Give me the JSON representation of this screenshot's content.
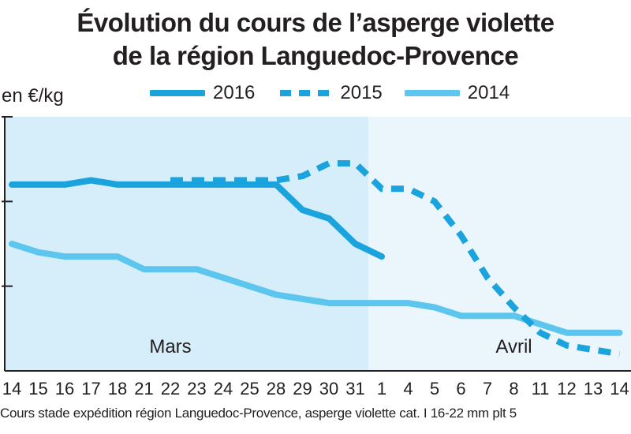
{
  "title_line1": "Évolution du cours de l’asperge violette",
  "title_line2": "de la région Languedoc-Provence",
  "unit": "en €/kg",
  "footnote": "Cours stade expédition région Languedoc-Provence, asperge violette cat. I 16-22 mm plt 5",
  "months": {
    "march": "Mars",
    "april": "Avril"
  },
  "colors": {
    "s2016": "#1ba3dd",
    "s2015": "#1ba3dd",
    "s2014": "#5cc6ee",
    "shade_march": "#d6eef9",
    "shade_april": "#eaf6fc",
    "axis": "#231f20"
  },
  "chart_data": {
    "type": "line",
    "title": "Évolution du cours de l’asperge violette de la région Languedoc-Provence",
    "ylabel": "en €/kg",
    "ylim": [
      0,
      3
    ],
    "grid": false,
    "legend_placement": "top",
    "categories": [
      "14",
      "15",
      "16",
      "17",
      "18",
      "21",
      "22",
      "23",
      "24",
      "25",
      "28",
      "29",
      "30",
      "31",
      "1",
      "4",
      "5",
      "6",
      "7",
      "8",
      "11",
      "12",
      "13",
      "14"
    ],
    "series": [
      {
        "name": "2016",
        "style": "solid",
        "values": [
          2.2,
          2.2,
          2.2,
          2.25,
          2.2,
          2.2,
          2.2,
          2.2,
          2.2,
          2.2,
          2.2,
          1.9,
          1.8,
          1.5,
          1.35,
          null,
          null,
          null,
          null,
          null,
          null,
          null,
          null,
          null
        ]
      },
      {
        "name": "2015",
        "style": "dashed",
        "values": [
          null,
          null,
          null,
          null,
          null,
          null,
          2.25,
          2.25,
          2.25,
          2.25,
          2.25,
          2.3,
          2.45,
          2.45,
          2.15,
          2.15,
          2.0,
          1.6,
          1.1,
          0.75,
          0.45,
          0.3,
          0.25,
          0.2
        ]
      },
      {
        "name": "2014",
        "style": "solid",
        "values": [
          1.5,
          1.4,
          1.35,
          1.35,
          1.35,
          1.2,
          1.2,
          1.2,
          1.1,
          1.0,
          0.9,
          0.85,
          0.8,
          0.8,
          0.8,
          0.8,
          0.75,
          0.65,
          0.65,
          0.65,
          0.55,
          0.45,
          0.45,
          0.45
        ]
      }
    ]
  }
}
